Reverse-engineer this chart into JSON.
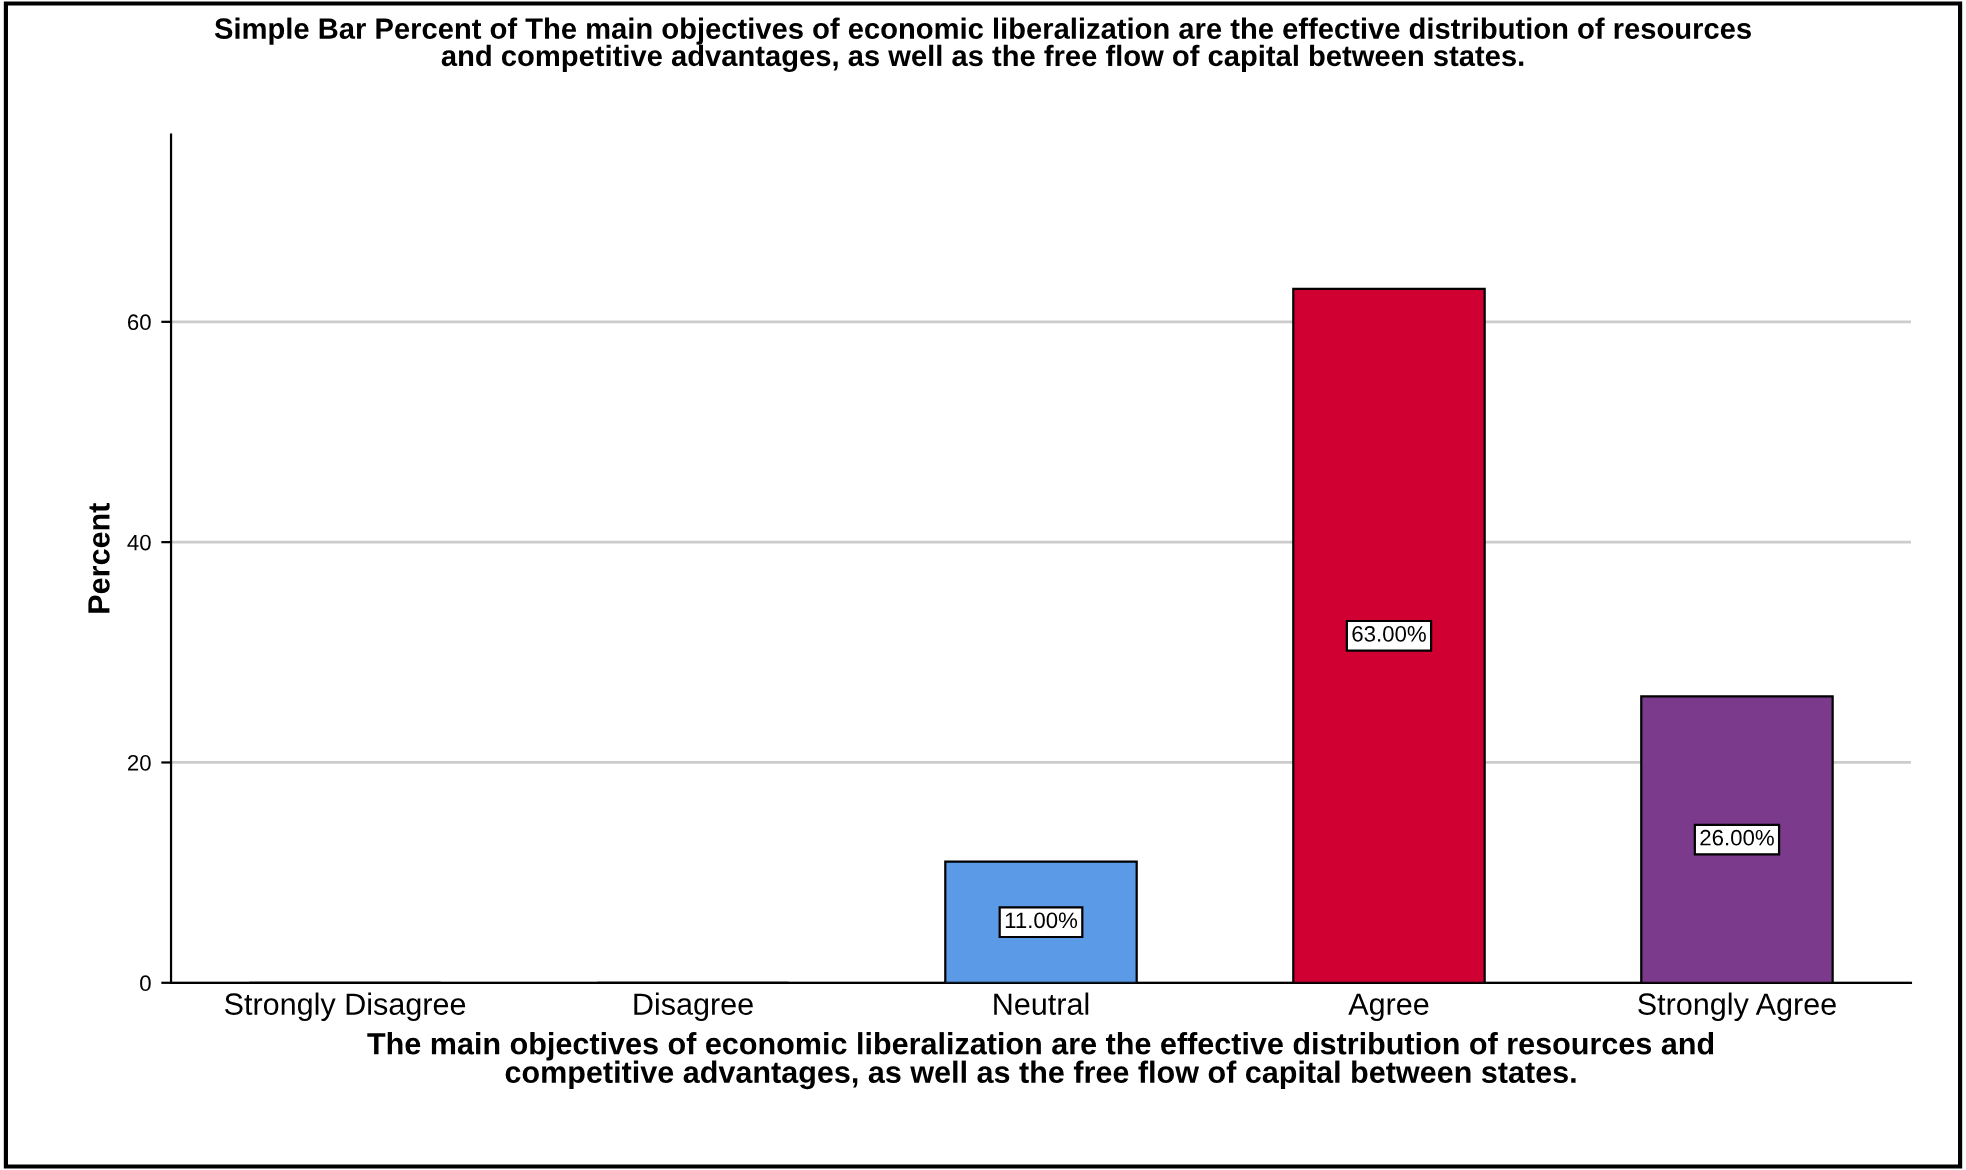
{
  "chart_data": {
    "type": "bar",
    "title": "Simple Bar Percent of The main objectives of economic liberalization are the effective distribution of resources\nand competitive advantages, as well as the free flow of capital between states.",
    "xlabel": "The main objectives of economic liberalization are the effective distribution of resources and\ncompetitive advantages, as well as the free flow of capital between states.",
    "ylabel": "Percent",
    "categories": [
      "Strongly Disagree",
      "Disagree",
      "Neutral",
      "Agree",
      "Strongly Agree"
    ],
    "values": [
      0,
      0,
      11,
      63,
      26
    ],
    "value_labels": [
      null,
      null,
      "11.00%",
      "63.00%",
      "26.00%"
    ],
    "colors": [
      "#5a9ae6",
      "#5a9ae6",
      "#5a9ae6",
      "#d10032",
      "#7b3a8c"
    ],
    "ylim": [
      0,
      77
    ],
    "yticks": [
      0,
      20,
      40,
      60
    ],
    "grid": "y"
  }
}
